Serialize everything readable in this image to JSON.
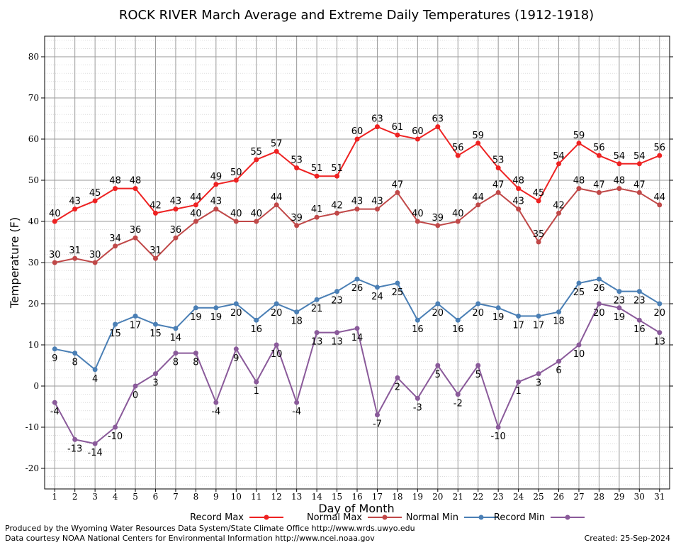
{
  "chart_data": {
    "type": "line",
    "title": "ROCK RIVER March Average and Extreme Daily Temperatures (1912-1918)",
    "xlabel": "Day of Month",
    "ylabel": "Temperature (F)",
    "x": [
      1,
      2,
      3,
      4,
      5,
      6,
      7,
      8,
      9,
      10,
      11,
      12,
      13,
      14,
      15,
      16,
      17,
      18,
      19,
      20,
      21,
      22,
      23,
      24,
      25,
      26,
      27,
      28,
      29,
      30,
      31
    ],
    "xlim": [
      0.5,
      31.5
    ],
    "ylim": [
      -25,
      85
    ],
    "yticks": [
      -20,
      -10,
      0,
      10,
      20,
      30,
      40,
      50,
      60,
      70,
      80
    ],
    "grid": true,
    "legend_position": "bottom",
    "series": [
      {
        "name": "Record Max",
        "color": "#ee2222",
        "values": [
          40,
          43,
          45,
          48,
          48,
          42,
          43,
          44,
          49,
          50,
          55,
          57,
          53,
          51,
          51,
          60,
          63,
          61,
          60,
          63,
          56,
          59,
          53,
          48,
          45,
          54,
          59,
          56,
          54,
          54,
          56
        ]
      },
      {
        "name": "Normal Max",
        "color": "#c04848",
        "values": [
          30,
          31,
          30,
          34,
          36,
          31,
          36,
          40,
          43,
          40,
          40,
          44,
          39,
          41,
          42,
          43,
          43,
          47,
          40,
          39,
          40,
          44,
          47,
          43,
          35,
          42,
          48,
          47,
          48,
          47,
          44
        ]
      },
      {
        "name": "Normal Min",
        "color": "#4a7fb5",
        "values": [
          9,
          8,
          4,
          15,
          17,
          15,
          14,
          19,
          19,
          20,
          16,
          20,
          18,
          21,
          23,
          26,
          24,
          25,
          16,
          20,
          16,
          20,
          19,
          17,
          17,
          18,
          25,
          26,
          23,
          23,
          20
        ]
      },
      {
        "name": "Record Min",
        "color": "#8a5a9a",
        "values": [
          -4,
          -13,
          -14,
          -10,
          0,
          3,
          8,
          8,
          -4,
          9,
          1,
          10,
          -4,
          13,
          13,
          14,
          -7,
          2,
          -3,
          5,
          -2,
          5,
          -10,
          1,
          3,
          6,
          10,
          20,
          19,
          16,
          13
        ]
      }
    ]
  },
  "footer": {
    "line1": "Produced by the Wyoming Water Resources Data System/State Climate Office http://www.wrds.uwyo.edu",
    "line2": "Data courtesy NOAA National Centers for Environmental Information http://www.ncei.noaa.gov",
    "created": "Created:  25-Sep-2024"
  }
}
